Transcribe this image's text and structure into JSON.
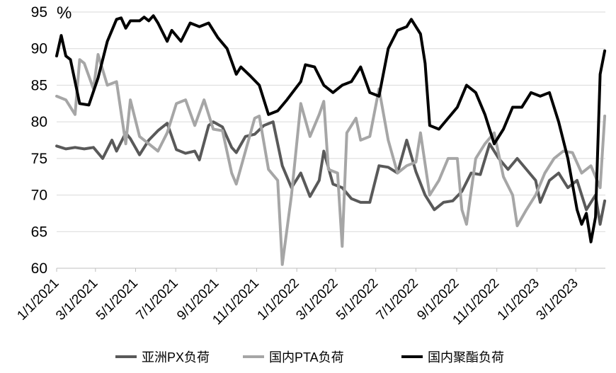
{
  "chart_data": {
    "type": "line",
    "unit_label": "%",
    "ylim": [
      60,
      95
    ],
    "yticks": [
      60,
      65,
      70,
      75,
      80,
      85,
      90,
      95
    ],
    "xlim": [
      "2021-01-01",
      "2023-04-15"
    ],
    "x_tick_dates": [
      "2021-01-01",
      "2021-03-01",
      "2021-05-01",
      "2021-07-01",
      "2021-09-01",
      "2021-11-01",
      "2022-01-01",
      "2022-03-01",
      "2022-05-01",
      "2022-07-01",
      "2022-09-01",
      "2022-11-01",
      "2023-01-01",
      "2023-03-01"
    ],
    "x_tick_labels": [
      "1/1/2021",
      "3/1/2021",
      "5/1/2021",
      "7/1/2021",
      "9/1/2021",
      "11/1/2021",
      "1/1/2022",
      "3/1/2022",
      "5/1/2022",
      "7/1/2022",
      "9/1/2022",
      "11/1/2022",
      "1/1/2023",
      "3/1/2023"
    ],
    "grid": "horizontal",
    "legend_position": "bottom",
    "series": [
      {
        "name": "亚洲PX负荷",
        "color": "#595959",
        "points": [
          [
            "2021-01-01",
            76.7
          ],
          [
            "2021-01-15",
            76.3
          ],
          [
            "2021-01-29",
            76.5
          ],
          [
            "2021-02-12",
            76.3
          ],
          [
            "2021-02-26",
            76.5
          ],
          [
            "2021-03-12",
            75.0
          ],
          [
            "2021-03-26",
            77.5
          ],
          [
            "2021-04-02",
            76.0
          ],
          [
            "2021-04-16",
            78.5
          ],
          [
            "2021-04-23",
            77.7
          ],
          [
            "2021-05-07",
            75.5
          ],
          [
            "2021-05-21",
            77.5
          ],
          [
            "2021-06-04",
            78.8
          ],
          [
            "2021-06-18",
            79.8
          ],
          [
            "2021-07-02",
            76.2
          ],
          [
            "2021-07-16",
            75.7
          ],
          [
            "2021-07-30",
            76.0
          ],
          [
            "2021-08-06",
            74.8
          ],
          [
            "2021-08-20",
            79.5
          ],
          [
            "2021-08-27",
            80.0
          ],
          [
            "2021-09-10",
            79.3
          ],
          [
            "2021-09-24",
            76.5
          ],
          [
            "2021-10-01",
            75.8
          ],
          [
            "2021-10-15",
            78.0
          ],
          [
            "2021-10-29",
            78.3
          ],
          [
            "2021-11-12",
            79.5
          ],
          [
            "2021-11-26",
            80.0
          ],
          [
            "2021-12-10",
            74.0
          ],
          [
            "2021-12-24",
            71.0
          ],
          [
            "2022-01-07",
            73.0
          ],
          [
            "2022-01-21",
            69.8
          ],
          [
            "2022-02-04",
            72.0
          ],
          [
            "2022-02-11",
            76.0
          ],
          [
            "2022-02-25",
            71.5
          ],
          [
            "2022-03-11",
            71.0
          ],
          [
            "2022-03-25",
            69.5
          ],
          [
            "2022-04-08",
            69.0
          ],
          [
            "2022-04-22",
            69.0
          ],
          [
            "2022-05-06",
            74.0
          ],
          [
            "2022-05-20",
            73.8
          ],
          [
            "2022-06-03",
            73.0
          ],
          [
            "2022-06-17",
            77.5
          ],
          [
            "2022-07-01",
            73.2
          ],
          [
            "2022-07-15",
            70.0
          ],
          [
            "2022-07-29",
            68.0
          ],
          [
            "2022-08-12",
            69.0
          ],
          [
            "2022-08-26",
            69.2
          ],
          [
            "2022-09-09",
            70.5
          ],
          [
            "2022-09-23",
            73.0
          ],
          [
            "2022-10-07",
            72.8
          ],
          [
            "2022-10-21",
            77.0
          ],
          [
            "2022-11-04",
            75.0
          ],
          [
            "2022-11-18",
            73.5
          ],
          [
            "2022-12-02",
            75.0
          ],
          [
            "2022-12-16",
            73.5
          ],
          [
            "2022-12-30",
            72.0
          ],
          [
            "2023-01-06",
            69.0
          ],
          [
            "2023-01-20",
            72.0
          ],
          [
            "2023-02-03",
            73.0
          ],
          [
            "2023-02-17",
            71.0
          ],
          [
            "2023-03-03",
            72.0
          ],
          [
            "2023-03-17",
            68.0
          ],
          [
            "2023-03-31",
            70.0
          ],
          [
            "2023-04-07",
            66.0
          ],
          [
            "2023-04-14",
            69.2
          ]
        ]
      },
      {
        "name": "国内PTA负荷",
        "color": "#a6a6a6",
        "points": [
          [
            "2021-01-01",
            83.5
          ],
          [
            "2021-01-15",
            83.0
          ],
          [
            "2021-01-29",
            81.0
          ],
          [
            "2021-02-05",
            88.5
          ],
          [
            "2021-02-12",
            88.0
          ],
          [
            "2021-02-26",
            84.5
          ],
          [
            "2021-03-05",
            89.2
          ],
          [
            "2021-03-19",
            85.0
          ],
          [
            "2021-04-02",
            85.5
          ],
          [
            "2021-04-16",
            77.0
          ],
          [
            "2021-04-23",
            83.0
          ],
          [
            "2021-05-07",
            78.0
          ],
          [
            "2021-05-21",
            77.0
          ],
          [
            "2021-06-04",
            76.0
          ],
          [
            "2021-06-18",
            78.5
          ],
          [
            "2021-07-02",
            82.5
          ],
          [
            "2021-07-16",
            83.0
          ],
          [
            "2021-07-30",
            79.5
          ],
          [
            "2021-08-13",
            83.0
          ],
          [
            "2021-08-27",
            79.0
          ],
          [
            "2021-09-10",
            78.8
          ],
          [
            "2021-09-24",
            73.0
          ],
          [
            "2021-10-01",
            71.5
          ],
          [
            "2021-10-15",
            76.0
          ],
          [
            "2021-10-29",
            80.5
          ],
          [
            "2021-11-05",
            80.8
          ],
          [
            "2021-11-19",
            73.5
          ],
          [
            "2021-12-03",
            72.0
          ],
          [
            "2021-12-10",
            60.5
          ],
          [
            "2021-12-24",
            70.0
          ],
          [
            "2022-01-07",
            82.5
          ],
          [
            "2022-01-21",
            78.0
          ],
          [
            "2022-02-04",
            81.0
          ],
          [
            "2022-02-11",
            82.8
          ],
          [
            "2022-02-18",
            73.5
          ],
          [
            "2022-03-04",
            73.0
          ],
          [
            "2022-03-11",
            63.0
          ],
          [
            "2022-03-18",
            78.5
          ],
          [
            "2022-04-01",
            80.5
          ],
          [
            "2022-04-08",
            77.5
          ],
          [
            "2022-04-22",
            78.0
          ],
          [
            "2022-05-06",
            84.5
          ],
          [
            "2022-05-20",
            77.5
          ],
          [
            "2022-06-03",
            73.0
          ],
          [
            "2022-06-17",
            74.0
          ],
          [
            "2022-07-01",
            74.5
          ],
          [
            "2022-07-08",
            78.5
          ],
          [
            "2022-07-22",
            70.0
          ],
          [
            "2022-08-05",
            72.0
          ],
          [
            "2022-08-19",
            75.0
          ],
          [
            "2022-09-02",
            75.0
          ],
          [
            "2022-09-09",
            68.0
          ],
          [
            "2022-09-16",
            66.0
          ],
          [
            "2022-09-30",
            75.0
          ],
          [
            "2022-10-14",
            77.0
          ],
          [
            "2022-10-28",
            78.5
          ],
          [
            "2022-11-11",
            72.5
          ],
          [
            "2022-11-25",
            70.0
          ],
          [
            "2022-12-02",
            65.8
          ],
          [
            "2022-12-16",
            68.0
          ],
          [
            "2022-12-30",
            70.0
          ],
          [
            "2023-01-13",
            73.0
          ],
          [
            "2023-01-27",
            75.0
          ],
          [
            "2023-02-10",
            76.0
          ],
          [
            "2023-02-24",
            75.8
          ],
          [
            "2023-03-10",
            73.0
          ],
          [
            "2023-03-24",
            74.0
          ],
          [
            "2023-04-07",
            71.0
          ],
          [
            "2023-04-14",
            80.8
          ]
        ]
      },
      {
        "name": "国内聚酯负荷",
        "color": "#000000",
        "points": [
          [
            "2021-01-01",
            89.0
          ],
          [
            "2021-01-08",
            91.8
          ],
          [
            "2021-01-15",
            89.0
          ],
          [
            "2021-01-22",
            88.5
          ],
          [
            "2021-02-05",
            82.5
          ],
          [
            "2021-02-19",
            82.3
          ],
          [
            "2021-03-05",
            86.0
          ],
          [
            "2021-03-19",
            91.0
          ],
          [
            "2021-04-02",
            94.0
          ],
          [
            "2021-04-09",
            94.2
          ],
          [
            "2021-04-16",
            92.8
          ],
          [
            "2021-04-23",
            93.8
          ],
          [
            "2021-05-07",
            93.8
          ],
          [
            "2021-05-14",
            94.3
          ],
          [
            "2021-05-21",
            93.8
          ],
          [
            "2021-05-28",
            94.5
          ],
          [
            "2021-06-04",
            93.5
          ],
          [
            "2021-06-18",
            91.0
          ],
          [
            "2021-06-25",
            92.5
          ],
          [
            "2021-07-09",
            91.0
          ],
          [
            "2021-07-23",
            93.5
          ],
          [
            "2021-08-06",
            93.0
          ],
          [
            "2021-08-20",
            93.5
          ],
          [
            "2021-09-03",
            91.5
          ],
          [
            "2021-09-17",
            90.0
          ],
          [
            "2021-10-01",
            86.5
          ],
          [
            "2021-10-08",
            87.5
          ],
          [
            "2021-10-22",
            86.3
          ],
          [
            "2021-11-05",
            85.0
          ],
          [
            "2021-11-19",
            81.0
          ],
          [
            "2021-12-03",
            81.5
          ],
          [
            "2021-12-17",
            83.0
          ],
          [
            "2022-01-07",
            85.5
          ],
          [
            "2022-01-14",
            87.8
          ],
          [
            "2022-01-28",
            87.5
          ],
          [
            "2022-02-11",
            85.0
          ],
          [
            "2022-02-25",
            84.0
          ],
          [
            "2022-03-11",
            85.0
          ],
          [
            "2022-03-25",
            85.5
          ],
          [
            "2022-04-08",
            87.5
          ],
          [
            "2022-04-22",
            84.0
          ],
          [
            "2022-05-06",
            83.5
          ],
          [
            "2022-05-20",
            90.0
          ],
          [
            "2022-06-03",
            92.5
          ],
          [
            "2022-06-17",
            93.0
          ],
          [
            "2022-06-24",
            94.0
          ],
          [
            "2022-07-08",
            92.0
          ],
          [
            "2022-07-15",
            88.0
          ],
          [
            "2022-07-22",
            79.5
          ],
          [
            "2022-08-05",
            79.0
          ],
          [
            "2022-08-19",
            80.5
          ],
          [
            "2022-09-02",
            82.0
          ],
          [
            "2022-09-16",
            85.0
          ],
          [
            "2022-09-30",
            84.0
          ],
          [
            "2022-10-14",
            81.0
          ],
          [
            "2022-10-28",
            77.0
          ],
          [
            "2022-11-11",
            79.0
          ],
          [
            "2022-11-25",
            82.0
          ],
          [
            "2022-12-09",
            82.0
          ],
          [
            "2022-12-23",
            84.0
          ],
          [
            "2023-01-06",
            83.5
          ],
          [
            "2023-01-20",
            84.0
          ],
          [
            "2023-02-03",
            80.0
          ],
          [
            "2023-02-17",
            75.0
          ],
          [
            "2023-03-03",
            68.0
          ],
          [
            "2023-03-10",
            66.0
          ],
          [
            "2023-03-17",
            67.5
          ],
          [
            "2023-03-24",
            63.6
          ],
          [
            "2023-03-31",
            67.0
          ],
          [
            "2023-04-07",
            86.5
          ],
          [
            "2023-04-14",
            89.7
          ]
        ]
      }
    ]
  }
}
